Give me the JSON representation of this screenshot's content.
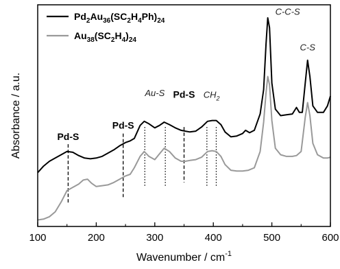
{
  "chart_data": {
    "type": "line",
    "title": "",
    "xlabel": "Wavenumber / cm",
    "xlabel_sup": "-1",
    "ylabel": "Absorbance / a.u.",
    "xlim": [
      100,
      600
    ],
    "xticks": [
      100,
      200,
      300,
      400,
      500,
      600
    ],
    "y_ticks_labeled": false,
    "grid": false,
    "legend_placement": "top-left",
    "series": [
      {
        "name": "Pd2Au36(SC2H4Ph)24",
        "color": "#000000",
        "points": [
          [
            100,
            0.03
          ],
          [
            110,
            0.07
          ],
          [
            120,
            0.1
          ],
          [
            130,
            0.12
          ],
          [
            140,
            0.14
          ],
          [
            150,
            0.16
          ],
          [
            160,
            0.155
          ],
          [
            170,
            0.135
          ],
          [
            180,
            0.12
          ],
          [
            190,
            0.115
          ],
          [
            200,
            0.12
          ],
          [
            210,
            0.13
          ],
          [
            220,
            0.15
          ],
          [
            230,
            0.17
          ],
          [
            240,
            0.195
          ],
          [
            250,
            0.215
          ],
          [
            258,
            0.225
          ],
          [
            265,
            0.24
          ],
          [
            275,
            0.32
          ],
          [
            282,
            0.345
          ],
          [
            290,
            0.33
          ],
          [
            300,
            0.305
          ],
          [
            308,
            0.32
          ],
          [
            316,
            0.34
          ],
          [
            325,
            0.325
          ],
          [
            335,
            0.305
          ],
          [
            345,
            0.29
          ],
          [
            352,
            0.285
          ],
          [
            360,
            0.28
          ],
          [
            370,
            0.285
          ],
          [
            380,
            0.31
          ],
          [
            390,
            0.345
          ],
          [
            398,
            0.35
          ],
          [
            405,
            0.35
          ],
          [
            413,
            0.325
          ],
          [
            420,
            0.28
          ],
          [
            430,
            0.25
          ],
          [
            440,
            0.255
          ],
          [
            450,
            0.27
          ],
          [
            455,
            0.29
          ],
          [
            462,
            0.275
          ],
          [
            470,
            0.29
          ],
          [
            480,
            0.39
          ],
          [
            486,
            0.54
          ],
          [
            490,
            0.82
          ],
          [
            493,
            0.98
          ],
          [
            496,
            0.92
          ],
          [
            500,
            0.58
          ],
          [
            506,
            0.42
          ],
          [
            515,
            0.38
          ],
          [
            525,
            0.385
          ],
          [
            535,
            0.39
          ],
          [
            542,
            0.43
          ],
          [
            547,
            0.4
          ],
          [
            552,
            0.4
          ],
          [
            557,
            0.58
          ],
          [
            561,
            0.72
          ],
          [
            565,
            0.62
          ],
          [
            570,
            0.44
          ],
          [
            578,
            0.4
          ],
          [
            588,
            0.4
          ],
          [
            595,
            0.44
          ],
          [
            600,
            0.5
          ]
        ]
      },
      {
        "name": "Au38(SC2H4)24",
        "color": "#999999",
        "points": [
          [
            100,
            -0.26
          ],
          [
            110,
            -0.255
          ],
          [
            120,
            -0.24
          ],
          [
            130,
            -0.21
          ],
          [
            140,
            -0.15
          ],
          [
            150,
            -0.08
          ],
          [
            160,
            -0.06
          ],
          [
            170,
            -0.04
          ],
          [
            178,
            -0.015
          ],
          [
            185,
            -0.01
          ],
          [
            192,
            -0.035
          ],
          [
            200,
            -0.055
          ],
          [
            210,
            -0.05
          ],
          [
            220,
            -0.045
          ],
          [
            230,
            -0.03
          ],
          [
            240,
            -0.01
          ],
          [
            250,
            0.01
          ],
          [
            258,
            0.02
          ],
          [
            265,
            0.06
          ],
          [
            275,
            0.13
          ],
          [
            282,
            0.16
          ],
          [
            290,
            0.13
          ],
          [
            300,
            0.11
          ],
          [
            308,
            0.145
          ],
          [
            316,
            0.18
          ],
          [
            325,
            0.16
          ],
          [
            335,
            0.12
          ],
          [
            345,
            0.1
          ],
          [
            352,
            0.1
          ],
          [
            360,
            0.105
          ],
          [
            370,
            0.11
          ],
          [
            380,
            0.125
          ],
          [
            390,
            0.16
          ],
          [
            398,
            0.165
          ],
          [
            405,
            0.16
          ],
          [
            413,
            0.13
          ],
          [
            420,
            0.08
          ],
          [
            430,
            0.045
          ],
          [
            440,
            0.04
          ],
          [
            450,
            0.04
          ],
          [
            460,
            0.045
          ],
          [
            470,
            0.06
          ],
          [
            480,
            0.16
          ],
          [
            486,
            0.34
          ],
          [
            490,
            0.52
          ],
          [
            493,
            0.62
          ],
          [
            496,
            0.57
          ],
          [
            500,
            0.35
          ],
          [
            506,
            0.18
          ],
          [
            515,
            0.14
          ],
          [
            525,
            0.13
          ],
          [
            535,
            0.13
          ],
          [
            542,
            0.135
          ],
          [
            550,
            0.16
          ],
          [
            557,
            0.37
          ],
          [
            561,
            0.46
          ],
          [
            565,
            0.38
          ],
          [
            570,
            0.21
          ],
          [
            578,
            0.14
          ],
          [
            588,
            0.12
          ],
          [
            595,
            0.12
          ],
          [
            600,
            0.125
          ]
        ]
      }
    ],
    "legend": [
      {
        "parts": [
          [
            "Pd",
            "n"
          ],
          [
            "2",
            "sub"
          ],
          [
            "Au",
            "n"
          ],
          [
            "36",
            "sub"
          ],
          [
            "(SC",
            "n"
          ],
          [
            "2",
            "sub"
          ],
          [
            "H",
            "n"
          ],
          [
            "4",
            "sub"
          ],
          [
            "Ph)",
            "n"
          ],
          [
            "24",
            "sub"
          ]
        ],
        "color": "#000000"
      },
      {
        "parts": [
          [
            "Au",
            "n"
          ],
          [
            "38",
            "sub"
          ],
          [
            "(SC",
            "n"
          ],
          [
            "2",
            "sub"
          ],
          [
            "H",
            "n"
          ],
          [
            "4",
            "sub"
          ],
          [
            ")",
            "n"
          ],
          [
            "24",
            "sub"
          ]
        ],
        "color": "#999999"
      }
    ],
    "vlines": [
      {
        "x": 152,
        "style": "dashed"
      },
      {
        "x": 246,
        "style": "dashed"
      },
      {
        "x": 283,
        "style": "dotted"
      },
      {
        "x": 318,
        "style": "dotted"
      },
      {
        "x": 350,
        "style": "dashed"
      },
      {
        "x": 389,
        "style": "dotted"
      },
      {
        "x": 405,
        "style": "dotted"
      }
    ],
    "annotations": [
      {
        "parts": [
          [
            "Pd-S",
            "n"
          ]
        ],
        "x": 152,
        "y": 0.23,
        "bold": true,
        "italic": false
      },
      {
        "parts": [
          [
            "Pd-S",
            "n"
          ]
        ],
        "x": 246,
        "y": 0.3,
        "bold": true,
        "italic": false
      },
      {
        "parts": [
          [
            "Au-S",
            "n"
          ]
        ],
        "x": 300,
        "y": 0.5,
        "bold": false,
        "italic": true
      },
      {
        "parts": [
          [
            "Pd-S",
            "n"
          ]
        ],
        "x": 350,
        "y": 0.49,
        "bold": true,
        "italic": false
      },
      {
        "parts": [
          [
            "CH",
            "n"
          ],
          [
            "2",
            "sub"
          ]
        ],
        "x": 397,
        "y": 0.49,
        "bold": false,
        "italic": true
      },
      {
        "parts": [
          [
            "C-C-S",
            "n"
          ]
        ],
        "x": 527,
        "y": 1.0,
        "bold": false,
        "italic": true
      },
      {
        "parts": [
          [
            "C-S",
            "n"
          ]
        ],
        "x": 561,
        "y": 0.78,
        "bold": false,
        "italic": true
      }
    ]
  }
}
